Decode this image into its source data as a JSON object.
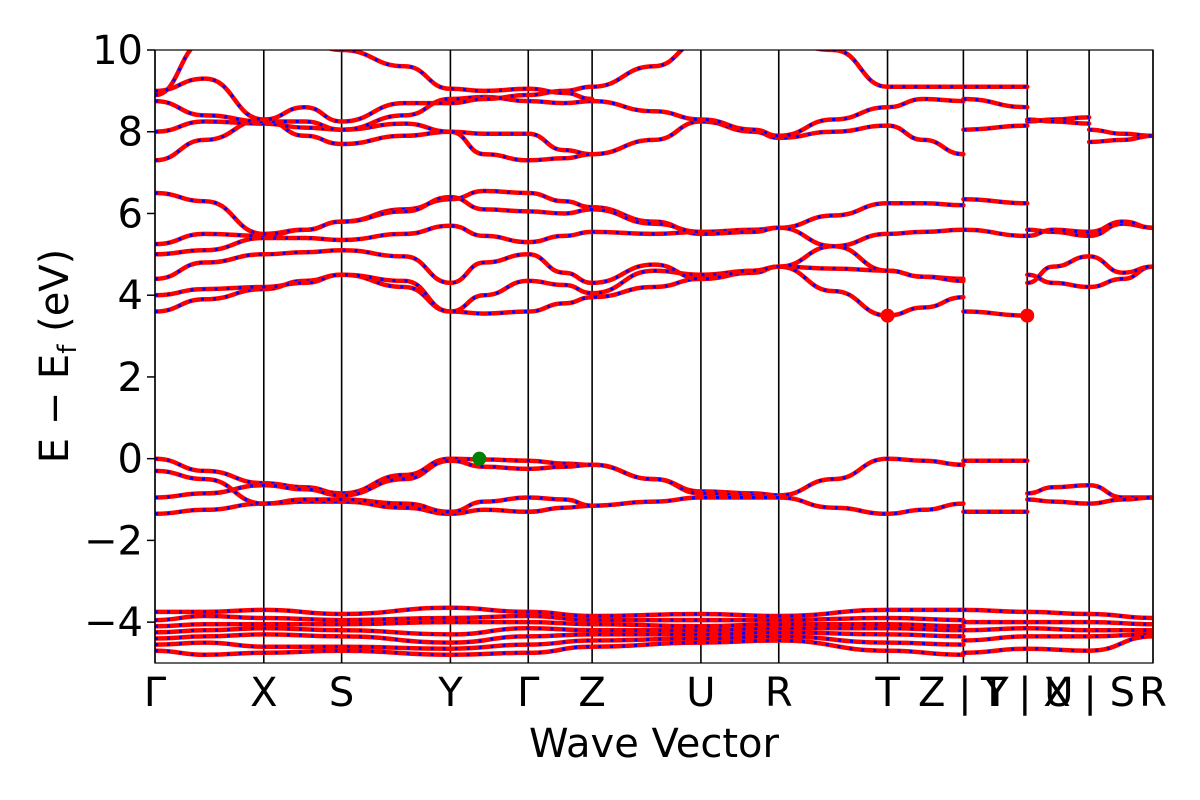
{
  "chart_data": {
    "type": "line",
    "title": "",
    "xlabel": "Wave Vector",
    "ylabel": "E − E",
    "ylabel_sub": "f",
    "ylabel_unit": " (eV)",
    "ylim": [
      -5,
      10
    ],
    "yticks": [
      {
        "value": 10,
        "label": "10"
      },
      {
        "value": 8,
        "label": "8"
      },
      {
        "value": 6,
        "label": "6"
      },
      {
        "value": 4,
        "label": "4"
      },
      {
        "value": 2,
        "label": "2"
      },
      {
        "value": 0,
        "label": "0"
      },
      {
        "value": -2,
        "label": "−2"
      },
      {
        "value": -4,
        "label": "−4"
      }
    ],
    "xlim": [
      0,
      1
    ],
    "kpoints": [
      {
        "x": 0.0,
        "label": "Γ"
      },
      {
        "x": 0.109,
        "label": "X"
      },
      {
        "x": 0.187,
        "label": "S"
      },
      {
        "x": 0.296,
        "label": "Y"
      },
      {
        "x": 0.374,
        "label": "Γ"
      },
      {
        "x": 0.438,
        "label": "Z"
      },
      {
        "x": 0.547,
        "label": "U"
      },
      {
        "x": 0.625,
        "label": "R"
      },
      {
        "x": 0.734,
        "label": "T"
      },
      {
        "x": 0.81,
        "label": "Z | Y"
      },
      {
        "x": 0.874,
        "label": "T | U"
      },
      {
        "x": 0.936,
        "label": "X | S"
      },
      {
        "x": 1.0,
        "label": "R"
      }
    ],
    "line_colors": {
      "primary": "#ff0000",
      "dashes": "#0000ff"
    },
    "marker_colors": {
      "vbm": "#008000",
      "cbm": "#ff0000"
    },
    "markers": [
      {
        "x": 0.325,
        "y": 0.0,
        "kind": "vbm"
      },
      {
        "x": 0.734,
        "y": 3.5,
        "kind": "cbm"
      },
      {
        "x": 0.874,
        "y": 3.5,
        "kind": "cbm"
      }
    ],
    "bands": [
      {
        "name": "",
        "x": [
          0,
          0.05,
          0.109,
          0.15,
          0.187,
          0.25,
          0.296,
          0.33,
          0.374,
          0.41,
          0.438,
          0.5,
          0.547,
          0.6,
          0.625,
          0.68,
          0.734,
          0.77,
          0.81
        ],
        "y": [
          0.0,
          -0.3,
          -0.6,
          -0.7,
          -0.85,
          -0.4,
          0.0,
          -0.02,
          -0.05,
          -0.12,
          -0.15,
          -0.5,
          -0.8,
          -0.85,
          -0.9,
          -0.5,
          0.0,
          -0.05,
          -0.15
        ]
      },
      {
        "name": "",
        "x": [
          0,
          0.05,
          0.109,
          0.15,
          0.187,
          0.25,
          0.296,
          0.33,
          0.374,
          0.41,
          0.438,
          0.5,
          0.547,
          0.6,
          0.625
        ],
        "y": [
          -0.95,
          -0.85,
          -0.65,
          -0.75,
          -0.9,
          -0.5,
          -0.05,
          -0.2,
          -0.25,
          -0.2,
          -0.15,
          -0.5,
          -0.85,
          -0.9,
          -0.95
        ]
      },
      {
        "name": "",
        "x": [
          0,
          0.05,
          0.109,
          0.15,
          0.187,
          0.25,
          0.296,
          0.33,
          0.374,
          0.41,
          0.438,
          0.5,
          0.547,
          0.6,
          0.625,
          0.68,
          0.734,
          0.77,
          0.81
        ],
        "y": [
          -1.35,
          -1.25,
          -1.1,
          -1.05,
          -1.05,
          -1.2,
          -1.35,
          -1.25,
          -1.3,
          -1.2,
          -1.15,
          -1.05,
          -0.95,
          -0.95,
          -0.95,
          -1.2,
          -1.35,
          -1.25,
          -1.1
        ]
      },
      {
        "name": "",
        "x": [
          0,
          0.05,
          0.109,
          0.15,
          0.187,
          0.25,
          0.296,
          0.33,
          0.374,
          0.41,
          0.438
        ],
        "y": [
          -0.3,
          -0.5,
          -1.1,
          -1.0,
          -1.0,
          -1.1,
          -1.3,
          -1.05,
          -0.95,
          -1.0,
          -1.15
        ]
      },
      {
        "name": "",
        "x": [
          0.874,
          0.9,
          0.936,
          0.97,
          1.0
        ],
        "y": [
          -0.85,
          -0.7,
          -0.65,
          -0.95,
          -0.95
        ]
      },
      {
        "name": "",
        "x": [
          0.874,
          0.9,
          0.936,
          0.97,
          1.0
        ],
        "y": [
          -1.0,
          -1.05,
          -1.1,
          -1.0,
          -0.95
        ]
      },
      {
        "name": "",
        "x": [
          0.81,
          0.874
        ],
        "y": [
          -0.05,
          -0.05
        ]
      },
      {
        "name": "",
        "x": [
          0.81,
          0.874
        ],
        "y": [
          -1.3,
          -1.3
        ]
      },
      {
        "name": "",
        "x": [
          0,
          0.05,
          0.109,
          0.15,
          0.187,
          0.25,
          0.296,
          0.33,
          0.374,
          0.41,
          0.438,
          0.5,
          0.547,
          0.6,
          0.625,
          0.68,
          0.734,
          0.77,
          0.81
        ],
        "y": [
          3.6,
          3.9,
          4.15,
          4.35,
          4.5,
          4.2,
          3.6,
          3.55,
          3.6,
          3.8,
          3.95,
          4.2,
          4.4,
          4.55,
          4.7,
          4.1,
          3.5,
          3.7,
          3.95
        ]
      },
      {
        "name": "",
        "x": [
          0,
          0.05,
          0.109,
          0.15,
          0.187,
          0.25,
          0.296,
          0.33,
          0.374,
          0.41,
          0.438,
          0.5,
          0.547,
          0.6,
          0.625,
          0.68,
          0.734,
          0.77,
          0.81
        ],
        "y": [
          4.0,
          4.15,
          4.2,
          4.3,
          4.5,
          4.35,
          3.6,
          4.0,
          4.35,
          4.25,
          4.05,
          4.6,
          4.5,
          4.6,
          4.7,
          4.65,
          4.6,
          4.45,
          4.4
        ]
      },
      {
        "name": "",
        "x": [
          0,
          0.05,
          0.109,
          0.15,
          0.187,
          0.25,
          0.296,
          0.33,
          0.374,
          0.41,
          0.438,
          0.5,
          0.547,
          0.6,
          0.625,
          0.68,
          0.734,
          0.77,
          0.81
        ],
        "y": [
          4.4,
          4.8,
          5.0,
          5.05,
          5.1,
          4.95,
          4.3,
          4.8,
          5.0,
          4.55,
          4.3,
          4.75,
          4.4,
          4.6,
          4.7,
          5.2,
          5.5,
          5.55,
          5.6
        ]
      },
      {
        "name": "",
        "x": [
          0,
          0.05,
          0.109,
          0.15,
          0.187,
          0.25,
          0.296,
          0.33,
          0.374,
          0.41,
          0.438,
          0.5,
          0.547,
          0.6,
          0.625,
          0.68,
          0.734,
          0.77,
          0.81
        ],
        "y": [
          5.0,
          5.1,
          5.4,
          5.4,
          5.35,
          5.5,
          5.7,
          5.45,
          5.3,
          5.45,
          5.55,
          5.5,
          5.55,
          5.6,
          5.65,
          5.95,
          6.25,
          6.25,
          6.2
        ]
      },
      {
        "name": "",
        "x": [
          0,
          0.05,
          0.109,
          0.15,
          0.187,
          0.25,
          0.296,
          0.33,
          0.374,
          0.41,
          0.438,
          0.5,
          0.547,
          0.6,
          0.625,
          0.68,
          0.734,
          0.77,
          0.81
        ],
        "y": [
          5.25,
          5.5,
          5.45,
          5.6,
          5.8,
          6.1,
          6.35,
          6.55,
          6.5,
          6.3,
          6.15,
          5.8,
          5.5,
          5.55,
          5.65,
          5.2,
          4.6,
          4.45,
          4.35
        ]
      },
      {
        "name": "",
        "x": [
          0,
          0.05,
          0.109,
          0.15,
          0.187,
          0.25,
          0.296,
          0.33,
          0.374,
          0.41,
          0.438,
          0.5,
          0.547
        ],
        "y": [
          6.5,
          6.3,
          5.5,
          5.6,
          5.8,
          6.05,
          6.4,
          6.1,
          6.05,
          6.0,
          6.1,
          5.75,
          5.55
        ]
      },
      {
        "name": "",
        "x": [
          0.81,
          0.874
        ],
        "y": [
          6.35,
          6.25
        ]
      },
      {
        "name": "",
        "x": [
          0.81,
          0.874
        ],
        "y": [
          3.6,
          3.5
        ]
      },
      {
        "name": "",
        "x": [
          0.81,
          0.874
        ],
        "y": [
          5.6,
          5.45
        ]
      },
      {
        "name": "",
        "x": [
          0.874,
          0.9,
          0.936,
          0.97,
          1.0
        ],
        "y": [
          4.5,
          4.3,
          4.2,
          4.4,
          4.7
        ]
      },
      {
        "name": "",
        "x": [
          0.874,
          0.9,
          0.936,
          0.97,
          1.0
        ],
        "y": [
          4.3,
          4.7,
          4.95,
          4.55,
          4.7
        ]
      },
      {
        "name": "",
        "x": [
          0.874,
          0.9,
          0.936,
          0.97,
          1.0
        ],
        "y": [
          5.6,
          5.55,
          5.45,
          5.75,
          5.65
        ]
      },
      {
        "name": "",
        "x": [
          0.874,
          0.9,
          0.936,
          0.97,
          1.0
        ],
        "y": [
          5.45,
          5.6,
          5.55,
          5.8,
          5.65
        ]
      },
      {
        "name": "",
        "x": [
          0,
          0.05,
          0.109,
          0.15,
          0.187,
          0.25,
          0.296,
          0.33,
          0.374,
          0.41,
          0.438,
          0.5,
          0.547,
          0.6,
          0.625,
          0.68,
          0.734,
          0.77,
          0.81
        ],
        "y": [
          7.3,
          7.8,
          8.3,
          7.9,
          7.7,
          7.9,
          8.0,
          7.95,
          7.95,
          7.55,
          7.45,
          7.8,
          8.25,
          8.0,
          7.85,
          8.0,
          8.15,
          7.8,
          7.45
        ]
      },
      {
        "name": "",
        "x": [
          0,
          0.05,
          0.109,
          0.15,
          0.187,
          0.25,
          0.296,
          0.33,
          0.374,
          0.41,
          0.438
        ],
        "y": [
          8.0,
          8.25,
          8.2,
          8.1,
          8.05,
          8.2,
          8.0,
          7.45,
          7.3,
          7.35,
          7.45
        ]
      },
      {
        "name": "",
        "x": [
          0,
          0.05,
          0.109,
          0.15,
          0.187,
          0.25,
          0.296,
          0.33,
          0.374,
          0.41,
          0.438,
          0.5,
          0.547,
          0.6,
          0.625,
          0.68,
          0.734,
          0.77,
          0.81
        ],
        "y": [
          8.75,
          8.4,
          8.25,
          8.25,
          8.05,
          8.4,
          8.8,
          8.85,
          8.75,
          8.7,
          8.75,
          8.5,
          8.3,
          8.05,
          7.9,
          8.3,
          8.6,
          8.8,
          8.75
        ]
      },
      {
        "name": "",
        "x": [
          0,
          0.05,
          0.109,
          0.15,
          0.187,
          0.25,
          0.296,
          0.33,
          0.374,
          0.41,
          0.438,
          0.5,
          0.547,
          0.6,
          0.625,
          0.68,
          0.734,
          0.77,
          0.81
        ],
        "y": [
          9.0,
          9.3,
          8.3,
          8.6,
          8.25,
          8.7,
          8.7,
          8.8,
          8.9,
          9.0,
          9.1,
          9.6,
          10.2,
          10.2,
          10.2,
          10.0,
          9.1,
          9.1,
          9.1
        ]
      },
      {
        "name": "",
        "x": [
          0,
          0.05,
          0.109,
          0.15,
          0.187,
          0.25,
          0.296,
          0.33,
          0.374,
          0.41,
          0.438
        ],
        "y": [
          8.9,
          10.2,
          10.4,
          10.2,
          10.0,
          9.6,
          9.05,
          9.0,
          9.05,
          8.95,
          8.8
        ]
      },
      {
        "name": "",
        "x": [
          0.81,
          0.874
        ],
        "y": [
          8.05,
          8.15
        ]
      },
      {
        "name": "",
        "x": [
          0.81,
          0.874
        ],
        "y": [
          8.8,
          8.6
        ]
      },
      {
        "name": "",
        "x": [
          0.81,
          0.874
        ],
        "y": [
          9.1,
          9.1
        ]
      },
      {
        "name": "",
        "x": [
          0.874,
          0.9,
          0.936
        ],
        "y": [
          8.25,
          8.3,
          8.35
        ]
      },
      {
        "name": "",
        "x": [
          0.874,
          0.9,
          0.936
        ],
        "y": [
          8.3,
          8.25,
          8.2
        ]
      },
      {
        "name": "",
        "x": [
          0.936,
          0.97,
          1.0
        ],
        "y": [
          7.75,
          7.8,
          7.9
        ]
      },
      {
        "name": "",
        "x": [
          0.936,
          0.97,
          1.0
        ],
        "y": [
          8.05,
          7.95,
          7.9
        ]
      },
      {
        "name": "",
        "x": [
          0,
          0.05,
          0.109,
          0.187,
          0.296,
          0.374,
          0.438,
          0.547,
          0.625,
          0.734,
          0.81
        ],
        "y": [
          -3.75,
          -3.75,
          -3.7,
          -3.8,
          -3.65,
          -3.75,
          -3.85,
          -3.8,
          -3.85,
          -3.7,
          -3.7
        ]
      },
      {
        "name": "",
        "x": [
          0,
          0.05,
          0.109,
          0.187,
          0.296,
          0.374,
          0.438,
          0.547,
          0.625,
          0.734,
          0.81
        ],
        "y": [
          -3.95,
          -3.85,
          -3.9,
          -3.95,
          -3.9,
          -3.85,
          -3.95,
          -3.95,
          -3.95,
          -3.9,
          -3.95
        ]
      },
      {
        "name": "",
        "x": [
          0,
          0.05,
          0.109,
          0.187,
          0.296,
          0.374,
          0.438,
          0.547,
          0.625,
          0.734,
          0.81
        ],
        "y": [
          -4.1,
          -4.05,
          -4.05,
          -4.05,
          -4.0,
          -4.0,
          -4.05,
          -4.1,
          -4.05,
          -4.05,
          -4.1
        ]
      },
      {
        "name": "",
        "x": [
          0,
          0.05,
          0.109,
          0.187,
          0.296,
          0.374,
          0.438,
          0.547,
          0.625,
          0.734,
          0.81
        ],
        "y": [
          -4.25,
          -4.2,
          -4.15,
          -4.2,
          -4.3,
          -4.15,
          -4.2,
          -4.2,
          -4.15,
          -4.15,
          -4.2
        ]
      },
      {
        "name": "",
        "x": [
          0,
          0.05,
          0.109,
          0.187,
          0.296,
          0.374,
          0.438,
          0.547,
          0.625,
          0.734,
          0.81
        ],
        "y": [
          -4.4,
          -4.35,
          -4.3,
          -4.35,
          -4.5,
          -4.35,
          -4.3,
          -4.3,
          -4.25,
          -4.3,
          -4.35
        ]
      },
      {
        "name": "",
        "x": [
          0,
          0.05,
          0.109,
          0.187,
          0.296,
          0.374,
          0.438,
          0.547,
          0.625,
          0.734,
          0.81
        ],
        "y": [
          -4.55,
          -4.5,
          -4.6,
          -4.6,
          -4.65,
          -4.55,
          -4.45,
          -4.4,
          -4.35,
          -4.5,
          -4.55
        ]
      },
      {
        "name": "",
        "x": [
          0,
          0.05,
          0.109,
          0.187,
          0.296,
          0.374,
          0.438,
          0.547,
          0.625,
          0.734,
          0.81
        ],
        "y": [
          -4.7,
          -4.8,
          -4.75,
          -4.7,
          -4.8,
          -4.75,
          -4.6,
          -4.5,
          -4.45,
          -4.7,
          -4.8
        ]
      },
      {
        "name": "",
        "x": [
          0.81,
          0.874,
          0.936,
          1.0
        ],
        "y": [
          -3.7,
          -3.75,
          -3.8,
          -3.9
        ]
      },
      {
        "name": "",
        "x": [
          0.81,
          0.874,
          0.936,
          1.0
        ],
        "y": [
          -4.0,
          -4.0,
          -4.0,
          -4.05
        ]
      },
      {
        "name": "",
        "x": [
          0.81,
          0.874,
          0.936,
          1.0
        ],
        "y": [
          -4.2,
          -4.15,
          -4.2,
          -4.2
        ]
      },
      {
        "name": "",
        "x": [
          0.81,
          0.874,
          0.936,
          1.0
        ],
        "y": [
          -4.45,
          -4.35,
          -4.35,
          -4.3
        ]
      },
      {
        "name": "",
        "x": [
          0.81,
          0.874,
          0.936,
          1.0
        ],
        "y": [
          -4.75,
          -4.65,
          -4.7,
          -4.35
        ]
      }
    ]
  }
}
